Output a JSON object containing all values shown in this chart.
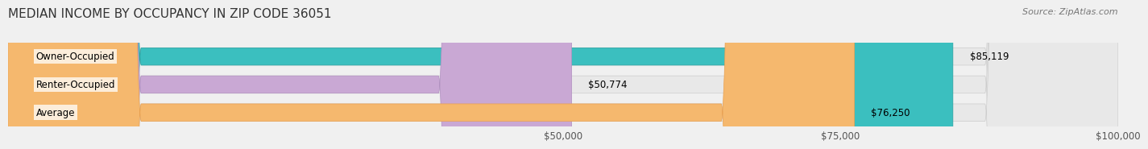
{
  "title": "MEDIAN INCOME BY OCCUPANCY IN ZIP CODE 36051",
  "source": "Source: ZipAtlas.com",
  "categories": [
    "Owner-Occupied",
    "Renter-Occupied",
    "Average"
  ],
  "values": [
    85119,
    50774,
    76250
  ],
  "labels": [
    "$85,119",
    "$50,774",
    "$76,250"
  ],
  "bar_colors": [
    "#3bbfbf",
    "#c9a8d4",
    "#f5b86e"
  ],
  "bar_edge_colors": [
    "#2aa0a0",
    "#b090c0",
    "#e8a050"
  ],
  "xlim": [
    0,
    100000
  ],
  "xticks": [
    50000,
    75000,
    100000
  ],
  "xticklabels": [
    "$50,000",
    "$75,000",
    "$100,000"
  ],
  "bg_color": "#f0f0f0",
  "bar_bg_color": "#e8e8e8",
  "title_fontsize": 11,
  "label_fontsize": 8.5,
  "tick_fontsize": 8.5,
  "source_fontsize": 8
}
